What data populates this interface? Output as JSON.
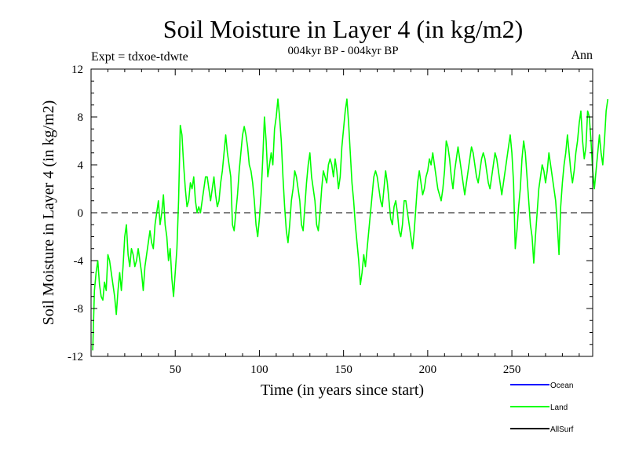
{
  "chart_data": {
    "type": "line",
    "title": "Soil Moisture in Layer 4 (in kg/m2)",
    "subtitle": "004kyr BP - 004kyr BP",
    "left_note": "Expt = tdxoe-tdwte",
    "right_note": "Ann",
    "xlabel": "Time (in years since start)",
    "ylabel": "Soil Moisture in Layer 4 (in kg/m2)",
    "xlim": [
      0,
      298
    ],
    "ylim": [
      -12,
      12
    ],
    "x_ticks": [
      50,
      100,
      150,
      200,
      250
    ],
    "x_tick_labels": [
      "50",
      "100",
      "150",
      "200",
      "250"
    ],
    "y_ticks": [
      -12,
      -8,
      -4,
      0,
      4,
      8,
      12
    ],
    "y_tick_labels": [
      "-12",
      "-8",
      "-4",
      "0",
      "4",
      "8",
      "12"
    ],
    "zero_line": true,
    "grid": false,
    "legend": {
      "placement": "bottom-right",
      "entries": [
        {
          "name": "Ocean",
          "color": "#0000ff"
        },
        {
          "name": "Land",
          "color": "#00ff00"
        },
        {
          "name": "AllSurf",
          "color": "#000000"
        }
      ]
    },
    "series": [
      {
        "name": "Land",
        "color": "#00ff00",
        "x_start": 1,
        "x_step": 1,
        "values": [
          -11.5,
          -6.5,
          -5.0,
          -4.0,
          -6.0,
          -7.0,
          -7.3,
          -5.8,
          -6.5,
          -3.5,
          -4.0,
          -5.0,
          -6.0,
          -7.0,
          -8.5,
          -6.5,
          -5.0,
          -6.5,
          -4.5,
          -2.0,
          -1.0,
          -3.5,
          -4.5,
          -3.0,
          -3.5,
          -4.5,
          -4.0,
          -3.0,
          -4.0,
          -5.0,
          -6.5,
          -4.5,
          -3.5,
          -2.5,
          -1.5,
          -2.5,
          -3.0,
          -1.0,
          0.0,
          1.0,
          -1.0,
          0.0,
          1.5,
          -1.0,
          -2.0,
          -4.0,
          -3.0,
          -5.5,
          -7.0,
          -5.0,
          -3.0,
          1.0,
          7.3,
          6.5,
          4.0,
          2.0,
          0.5,
          1.0,
          2.5,
          2.0,
          3.0,
          1.0,
          0.0,
          0.5,
          0.0,
          1.0,
          2.0,
          3.0,
          3.0,
          2.0,
          1.0,
          2.0,
          3.0,
          1.5,
          0.5,
          1.0,
          2.5,
          3.5,
          5.0,
          6.5,
          5.0,
          4.0,
          3.0,
          -1.0,
          -1.5,
          0.0,
          1.5,
          3.5,
          5.0,
          6.5,
          7.2,
          6.5,
          5.5,
          4.0,
          3.5,
          2.5,
          1.0,
          -1.0,
          -2.0,
          -0.5,
          1.5,
          4.5,
          8.0,
          6.0,
          3.0,
          4.0,
          5.0,
          4.0,
          7.0,
          8.0,
          9.5,
          8.0,
          6.0,
          3.0,
          0.5,
          -1.5,
          -2.5,
          -1.0,
          1.0,
          2.0,
          3.5,
          3.0,
          2.0,
          1.0,
          -1.0,
          -1.5,
          0.5,
          2.5,
          4.0,
          5.0,
          3.0,
          2.0,
          1.0,
          -1.0,
          -1.5,
          0.0,
          2.0,
          3.5,
          3.0,
          2.5,
          4.0,
          4.5,
          4.0,
          3.0,
          4.5,
          3.5,
          2.0,
          3.0,
          5.5,
          7.0,
          8.5,
          9.5,
          7.5,
          5.0,
          2.5,
          1.0,
          -1.0,
          -2.5,
          -4.0,
          -6.0,
          -5.0,
          -3.5,
          -4.5,
          -3.0,
          -1.5,
          0.0,
          1.5,
          3.0,
          3.5,
          3.0,
          2.0,
          1.0,
          0.5,
          2.0,
          3.5,
          2.5,
          1.0,
          -0.5,
          -1.0,
          0.5,
          1.0,
          0.0,
          -1.5,
          -2.0,
          -1.0,
          1.0,
          1.0,
          0.0,
          -1.0,
          -2.0,
          -3.0,
          -1.5,
          0.5,
          2.5,
          3.5,
          2.5,
          1.5,
          2.0,
          3.0,
          3.5,
          4.5,
          4.0,
          5.0,
          4.0,
          3.0,
          2.0,
          1.5,
          1.0,
          2.0,
          3.5,
          6.0,
          5.5,
          4.5,
          3.0,
          2.0,
          3.5,
          4.5,
          5.5,
          4.5,
          3.5,
          2.5,
          1.5,
          2.5,
          3.5,
          4.5,
          5.5,
          5.0,
          4.0,
          3.0,
          2.5,
          3.5,
          4.5,
          5.0,
          4.5,
          3.5,
          2.5,
          2.0,
          3.0,
          4.0,
          5.0,
          4.5,
          3.5,
          2.5,
          1.5,
          2.5,
          3.5,
          4.5,
          5.5,
          6.5,
          5.0,
          2.5,
          -3.0,
          -1.5,
          0.5,
          2.0,
          4.5,
          6.0,
          5.0,
          3.0,
          1.0,
          -1.0,
          -2.0,
          -4.2,
          -2.0,
          0.0,
          2.0,
          3.0,
          4.0,
          3.5,
          2.5,
          3.5,
          5.0,
          4.0,
          3.0,
          2.0,
          1.0,
          -1.0,
          -3.5,
          0.5,
          2.5,
          4.0,
          5.0,
          6.5,
          5.0,
          3.5,
          2.5,
          3.5,
          5.0,
          6.0,
          7.5,
          8.5,
          6.0,
          4.5,
          5.5,
          8.5,
          8.0,
          6.0,
          3.5,
          2.0,
          3.5,
          5.0,
          6.5,
          5.0,
          4.0,
          6.0,
          8.5,
          9.5
        ]
      },
      {
        "name": "Ocean",
        "color": "#0000ff",
        "values": []
      },
      {
        "name": "AllSurf",
        "color": "#000000",
        "values": []
      }
    ]
  }
}
